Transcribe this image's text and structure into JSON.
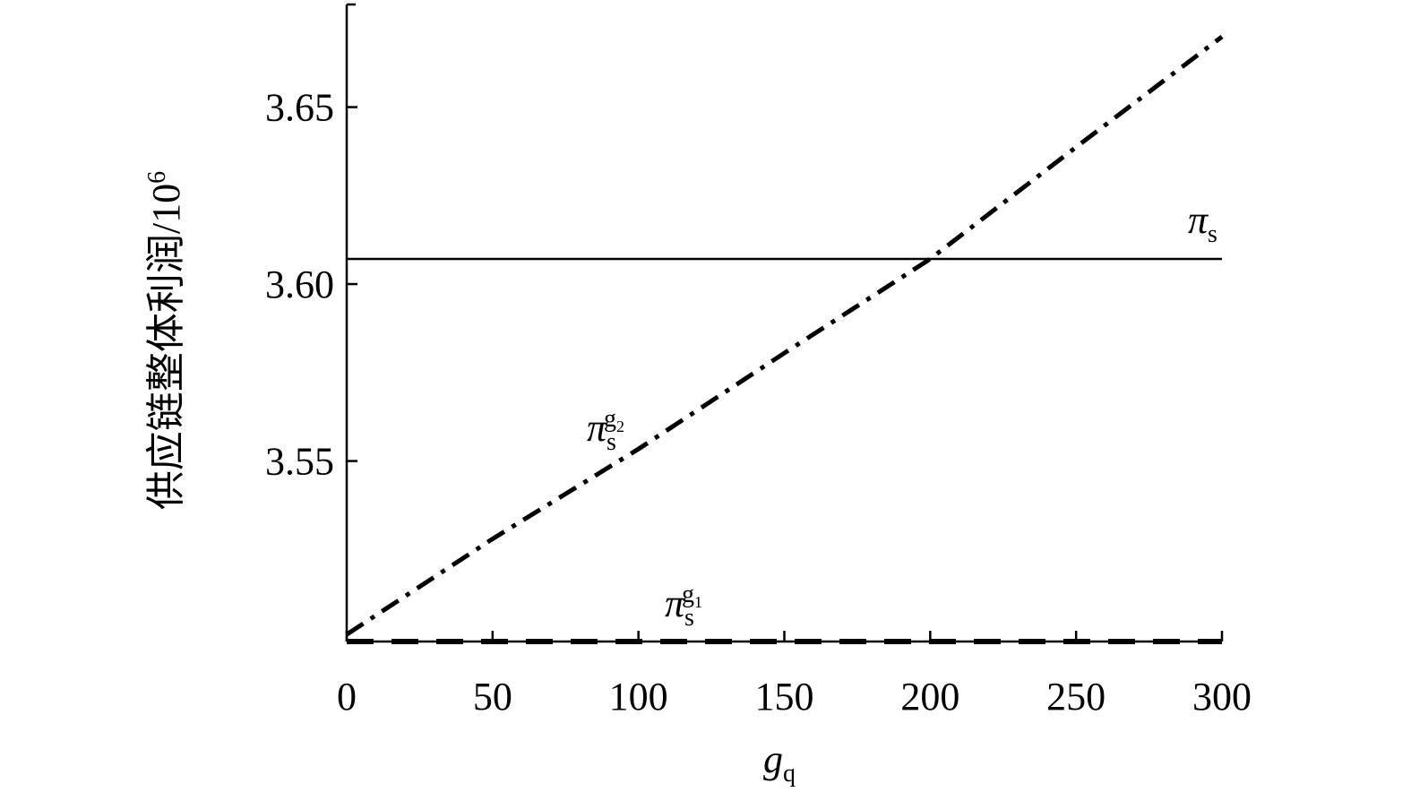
{
  "chart_data": {
    "type": "line",
    "ylabel": "供应链整体利润/10",
    "ylabel_sup": "6",
    "xlabel": "g",
    "xlabel_sub": "q",
    "x": [
      0,
      50,
      100,
      150,
      200,
      250,
      300
    ],
    "series": [
      {
        "symbol": "π",
        "sub": "s",
        "color": "#000000",
        "style": "solid",
        "values": [
          3.6071,
          3.6071,
          3.6071,
          3.6071,
          3.6071,
          3.6071,
          3.6071
        ]
      },
      {
        "symbol": "π",
        "sub": "s",
        "sup": "g",
        "sup_sub": "2",
        "color": "#000000",
        "style": "dashdot",
        "values": [
          3.501,
          3.528,
          3.5534,
          3.5805,
          3.6071,
          3.6387,
          3.6699
        ]
      },
      {
        "symbol": "π",
        "sub": "s",
        "sup": "g",
        "sup_sub": "1",
        "color": "#000000",
        "style": "dashed",
        "values": [
          3.499,
          3.499,
          3.499,
          3.499,
          3.499,
          3.499,
          3.499
        ]
      }
    ],
    "xlim": [
      0,
      300
    ],
    "xticks": [
      0,
      50,
      100,
      150,
      200,
      250,
      300
    ],
    "ylim": [
      3.499,
      3.679
    ],
    "yticks": [
      3.55,
      {
        "value": 3.6,
        "label": "3.60"
      },
      3.65
    ],
    "grid": false
  }
}
